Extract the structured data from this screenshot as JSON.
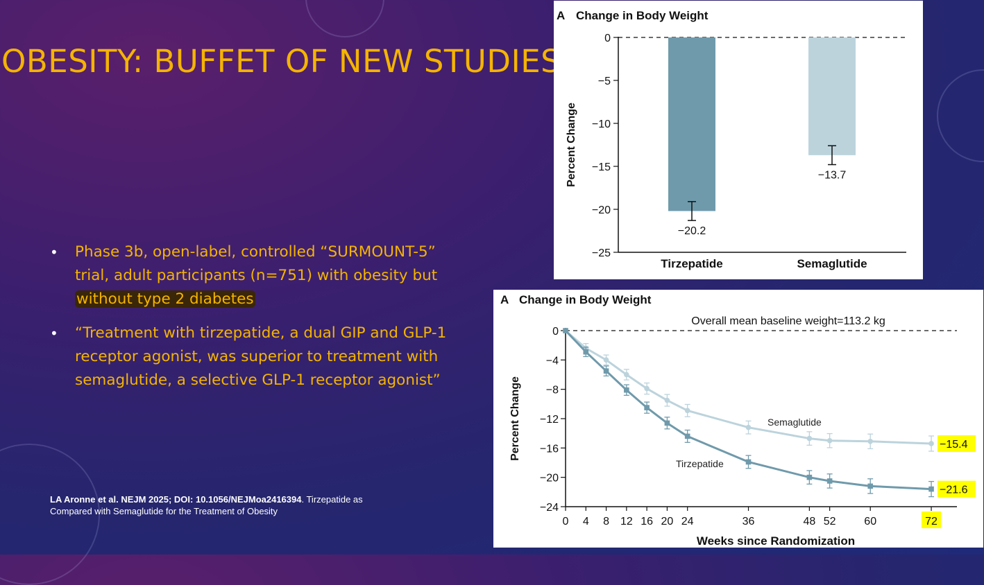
{
  "slide": {
    "title": "OBESITY: BUFFET OF NEW STUDIES",
    "bullets": [
      {
        "text": "Phase 3b, open-label, controlled “SURMOUNT-5” trial, adult participants (n=751) with obesity but ",
        "highlight": "without type 2 diabetes"
      },
      {
        "text": "“Treatment with tirzepatide, a dual GIP and GLP-1 receptor agonist, was superior to treatment with semaglutide, a selective GLP-1 receptor agonist”"
      }
    ],
    "citation": {
      "bold": "LA Aronne et al. NEJM 2025; DOI: 10.1056/NEJMoa2416394",
      "rest": ". Tirzepatide as Compared with Semaglutide for the Treatment of Obesity"
    },
    "colors": {
      "title": "#f5b400",
      "text": "#f5b400",
      "highlight_label": "#ffff00",
      "tirzepatide": "#6f9aab",
      "semaglutide": "#bcd3dc"
    }
  },
  "chart_data": [
    {
      "type": "bar",
      "panel_letter": "A",
      "title": "Change in Body Weight",
      "ylabel": "Percent Change",
      "categories": [
        "Tirzepatide",
        "Semaglutide"
      ],
      "values": [
        -20.2,
        -13.7
      ],
      "value_labels": [
        "−20.2",
        "−13.7"
      ],
      "error": [
        1.1,
        1.1
      ],
      "ylim": [
        -25,
        0
      ],
      "yticks": [
        0,
        -5,
        -10,
        -15,
        -20,
        -25
      ],
      "ytick_labels": [
        "0",
        "−5",
        "−10",
        "−15",
        "−20",
        "−25"
      ],
      "grid": false
    },
    {
      "type": "line",
      "panel_letter": "A",
      "title": "Change in Body Weight",
      "annotation": "Overall mean baseline weight=113.2 kg",
      "xlabel": "Weeks since Randomization",
      "ylabel": "Percent Change",
      "x": [
        0,
        4,
        8,
        12,
        16,
        20,
        24,
        36,
        48,
        52,
        60,
        72
      ],
      "xtick_labels": [
        "0",
        "4",
        "8",
        "12",
        "16",
        "20",
        "24",
        "36",
        "48",
        "52",
        "60",
        "72"
      ],
      "ylim": [
        -24,
        0
      ],
      "yticks": [
        0,
        -4,
        -8,
        -12,
        -16,
        -20,
        -24
      ],
      "ytick_labels": [
        "0",
        "−4",
        "−8",
        "−12",
        "−16",
        "−20",
        "−24"
      ],
      "series": [
        {
          "name": "Semaglutide",
          "values": [
            0,
            -2.4,
            -4.0,
            -6.0,
            -7.9,
            -9.5,
            -10.9,
            -13.2,
            -14.7,
            -15.0,
            -15.1,
            -15.4
          ],
          "end_label": "−15.4"
        },
        {
          "name": "Tirzepatide",
          "values": [
            0,
            -2.9,
            -5.5,
            -8.1,
            -10.5,
            -12.6,
            -14.4,
            -17.9,
            -20.0,
            -20.5,
            -21.2,
            -21.6
          ],
          "end_label": "−21.6"
        }
      ],
      "highlighted_tick": "72",
      "grid": false
    }
  ]
}
